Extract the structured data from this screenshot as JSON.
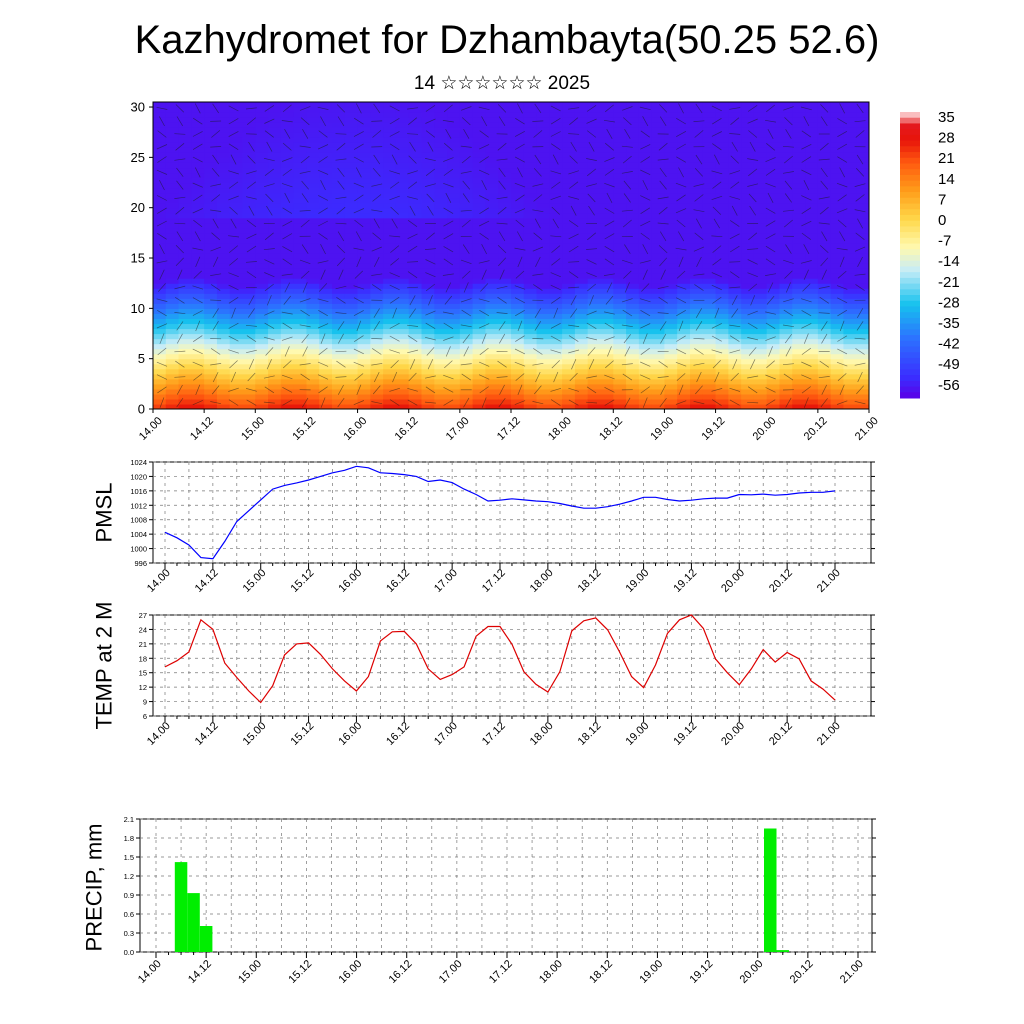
{
  "title": "Kazhydromet for Dzhambayta(50.25 52.6)",
  "subtitle": "14 ☆☆☆☆☆☆ 2025",
  "chart_data": [
    {
      "type": "heatmap",
      "name": "cross-section",
      "x_ticks": [
        "14.00",
        "14.12",
        "15.00",
        "15.12",
        "16.00",
        "16.12",
        "17.00",
        "17.12",
        "18.00",
        "18.12",
        "19.00",
        "19.12",
        "20.00",
        "20.12",
        "21.00"
      ],
      "y_ticks": [
        0,
        5,
        10,
        15,
        20,
        25,
        30
      ],
      "ylim": [
        0,
        30.5
      ],
      "colorbar": {
        "labels": [
          "35",
          "28",
          "21",
          "14",
          "7",
          "0",
          "-7",
          "-14",
          "-21",
          "-28",
          "-35",
          "-42",
          "-49",
          "-56"
        ],
        "range": [
          -63,
          38
        ],
        "colors": {
          "-63": "#5a00e6",
          "-56": "#3b2cff",
          "-42": "#2c72ff",
          "-30": "#16c2ee",
          "-18": "#c6ecf7",
          "-10": "#fff9b0",
          "0": "#ffd84a",
          "10": "#ff9e1a",
          "20": "#ff5a10",
          "28": "#e8140a",
          "33": "#e4191c",
          "38": "#ffe8e8"
        }
      },
      "field_surface_max": 26,
      "field_lapse_per_km": 6.8,
      "field_min": -60
    },
    {
      "type": "line",
      "name": "pmsl",
      "ylabel": "PMSL",
      "color": "#0000ff",
      "ylim": [
        996,
        1024
      ],
      "y_ticks": [
        996,
        1000,
        1004,
        1008,
        1012,
        1016,
        1020,
        1024
      ],
      "x_ticks": [
        "14.00",
        "14.12",
        "15.00",
        "15.12",
        "16.00",
        "16.12",
        "17.00",
        "17.12",
        "18.00",
        "18.12",
        "19.00",
        "19.12",
        "20.00",
        "20.12",
        "21.00"
      ],
      "x_hours": [
        0,
        3,
        6,
        9,
        12,
        15,
        18,
        21,
        24,
        27,
        30,
        33,
        36,
        39,
        42,
        45,
        48,
        51,
        54,
        57,
        60,
        63,
        66,
        69,
        72,
        75,
        78,
        81,
        84,
        87,
        90,
        93,
        96,
        99,
        102,
        105,
        108,
        111,
        114,
        117,
        120,
        123,
        126,
        129,
        132,
        135,
        138,
        141,
        144,
        147,
        150,
        153,
        156,
        159,
        162,
        165,
        168
      ],
      "values": [
        1004.5,
        1003,
        1001,
        997.5,
        997.2,
        1002,
        1007.5,
        1010.5,
        1013.5,
        1016.5,
        1017.5,
        1018.2,
        1019,
        1020,
        1021,
        1021.7,
        1022.8,
        1022.4,
        1021,
        1020.8,
        1020.5,
        1020,
        1018.6,
        1019,
        1018.3,
        1016.5,
        1015,
        1013.2,
        1013.4,
        1013.8,
        1013.5,
        1013.2,
        1013,
        1012.5,
        1011.8,
        1011.2,
        1011.2,
        1011.6,
        1012.3,
        1013.2,
        1014.2,
        1014.2,
        1013.6,
        1013.2,
        1013.4,
        1013.8,
        1014,
        1014,
        1015,
        1014.9,
        1015.1,
        1014.8,
        1015,
        1015.4,
        1015.6,
        1015.6,
        1016
      ]
    },
    {
      "type": "line",
      "name": "temp2m",
      "ylabel": "TEMP at 2 M",
      "color": "#dd0000",
      "ylim": [
        6,
        27
      ],
      "y_ticks": [
        6,
        9,
        12,
        15,
        18,
        21,
        24,
        27
      ],
      "x_ticks": [
        "14.00",
        "14.12",
        "15.00",
        "15.12",
        "16.00",
        "16.12",
        "17.00",
        "17.12",
        "18.00",
        "18.12",
        "19.00",
        "19.12",
        "20.00",
        "20.12",
        "21.00"
      ],
      "x_hours": [
        0,
        3,
        6,
        9,
        12,
        15,
        18,
        21,
        24,
        27,
        30,
        33,
        36,
        39,
        42,
        45,
        48,
        51,
        54,
        57,
        60,
        63,
        66,
        69,
        72,
        75,
        78,
        81,
        84,
        87,
        90,
        93,
        96,
        99,
        102,
        105,
        108,
        111,
        114,
        117,
        120,
        123,
        126,
        129,
        132,
        135,
        138,
        141,
        144,
        147,
        150,
        153,
        156,
        159,
        162,
        165,
        168
      ],
      "values": [
        16.2,
        17.5,
        19.3,
        26,
        24,
        17,
        14,
        11.2,
        8.8,
        12.3,
        18.7,
        21,
        21.2,
        18.8,
        15.8,
        13.3,
        11.2,
        14.2,
        21.6,
        23.5,
        23.6,
        21,
        15.8,
        13.6,
        14.6,
        16.2,
        22.6,
        24.6,
        24.6,
        20.9,
        15.2,
        12.6,
        11,
        15.2,
        23.7,
        25.8,
        26.4,
        23.9,
        19.3,
        14.2,
        11.9,
        16.6,
        23.2,
        26,
        27,
        24.2,
        17.9,
        15,
        12.5,
        15.8,
        19.8,
        17.2,
        19.2,
        17.9,
        13.3,
        11.6,
        9.3
      ]
    },
    {
      "type": "bar",
      "name": "precip",
      "ylabel": "PRECIP, mm",
      "color": "#00ee00",
      "ylim": [
        0,
        2.1
      ],
      "y_ticks": [
        "0.0",
        "0.3",
        "0.6",
        "0.9",
        "1.2",
        "1.5",
        "1.8",
        "2.1"
      ],
      "x_ticks": [
        "14.00",
        "14.12",
        "15.00",
        "15.12",
        "16.00",
        "16.12",
        "17.00",
        "17.12",
        "18.00",
        "18.12",
        "19.00",
        "19.12",
        "20.00",
        "20.12",
        "21.00"
      ],
      "bar_hours": [
        6,
        9,
        12,
        147,
        150
      ],
      "values": [
        1.42,
        0.93,
        0.41,
        1.95,
        0.03
      ]
    }
  ]
}
